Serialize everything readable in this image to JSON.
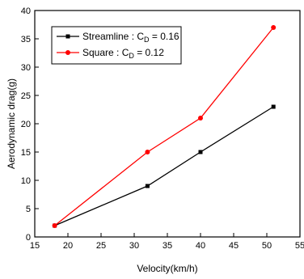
{
  "chart_data": {
    "type": "line",
    "xlabel": "Velocity(km/h)",
    "ylabel": "Aerodynamic drag(g)",
    "xlim": [
      15,
      55
    ],
    "ylim": [
      0,
      40
    ],
    "xticks": [
      15,
      20,
      25,
      30,
      35,
      40,
      45,
      50,
      55
    ],
    "yticks": [
      0,
      5,
      10,
      15,
      20,
      25,
      30,
      35,
      40
    ],
    "grid": false,
    "legend_position": "top-left",
    "series": [
      {
        "name": "Streamline",
        "legend_prefix": "Streamline   : C",
        "legend_sub": "D",
        "legend_suffix": " = 0.16",
        "color": "#000000",
        "marker": "square",
        "x": [
          18,
          32,
          40,
          51
        ],
        "y": [
          2,
          9,
          15,
          23
        ]
      },
      {
        "name": "Square",
        "legend_prefix": "Square     : C",
        "legend_sub": "D",
        "legend_suffix": " = 0.12",
        "color": "#ff0000",
        "marker": "circle",
        "x": [
          18,
          32,
          40,
          51
        ],
        "y": [
          2,
          15,
          21,
          37
        ]
      }
    ]
  }
}
